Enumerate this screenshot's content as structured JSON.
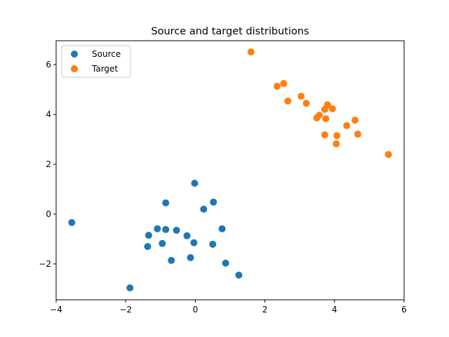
{
  "chart_data": {
    "type": "scatter",
    "title": "Source and target distributions",
    "xlabel": "",
    "ylabel": "",
    "xlim": [
      -4.0,
      6.0
    ],
    "ylim": [
      -3.44,
      6.96
    ],
    "xticks": [
      -4,
      -2,
      0,
      2,
      4,
      6
    ],
    "yticks": [
      -2,
      0,
      2,
      4,
      6
    ],
    "xtick_labels": [
      "−4",
      "−2",
      "0",
      "2",
      "4",
      "6"
    ],
    "ytick_labels": [
      "−2",
      "0",
      "2",
      "4",
      "6"
    ],
    "grid": false,
    "legend_position": "upper left",
    "series": [
      {
        "name": "Source",
        "color": "#1f77b4",
        "points": [
          [
            -3.55,
            -0.34
          ],
          [
            -1.88,
            -2.96
          ],
          [
            -1.34,
            -0.85
          ],
          [
            -1.37,
            -1.3
          ],
          [
            -0.02,
            1.24
          ],
          [
            -0.85,
            0.45
          ],
          [
            0.52,
            0.48
          ],
          [
            0.24,
            0.2
          ],
          [
            -1.09,
            -0.59
          ],
          [
            -0.85,
            -0.62
          ],
          [
            -0.54,
            -0.65
          ],
          [
            -0.24,
            -0.87
          ],
          [
            -0.04,
            -1.15
          ],
          [
            -0.95,
            -1.18
          ],
          [
            0.5,
            -1.21
          ],
          [
            0.77,
            -0.59
          ],
          [
            -0.69,
            -1.86
          ],
          [
            -0.14,
            -1.75
          ],
          [
            0.87,
            -1.97
          ],
          [
            1.25,
            -2.45
          ]
        ]
      },
      {
        "name": "Target",
        "color": "#ff7f0e",
        "points": [
          [
            1.6,
            6.51
          ],
          [
            2.35,
            5.13
          ],
          [
            2.54,
            5.24
          ],
          [
            2.66,
            4.54
          ],
          [
            3.04,
            4.73
          ],
          [
            3.19,
            4.45
          ],
          [
            3.8,
            4.39
          ],
          [
            3.72,
            4.2
          ],
          [
            3.94,
            4.23
          ],
          [
            3.56,
            3.97
          ],
          [
            3.49,
            3.86
          ],
          [
            3.75,
            3.83
          ],
          [
            4.59,
            3.77
          ],
          [
            4.35,
            3.55
          ],
          [
            3.72,
            3.18
          ],
          [
            4.07,
            3.15
          ],
          [
            4.67,
            3.21
          ],
          [
            4.05,
            2.82
          ],
          [
            5.55,
            2.39
          ]
        ]
      }
    ]
  }
}
